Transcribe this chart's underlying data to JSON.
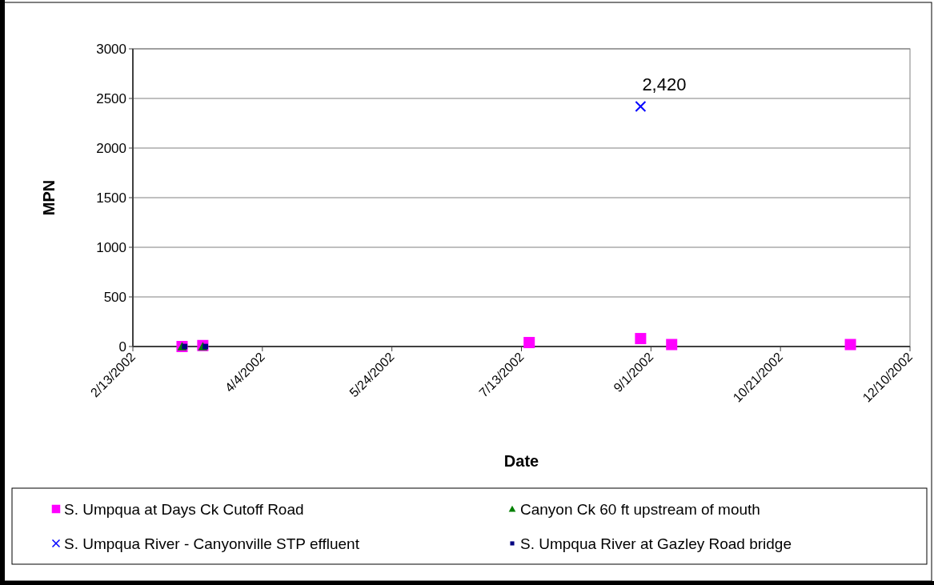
{
  "chart_data": {
    "type": "scatter",
    "xlabel": "Date",
    "ylabel": "MPN",
    "xlim": [
      "2002-02-13",
      "2002-12-10"
    ],
    "xticks": [
      {
        "value": "2002-02-13",
        "label": "2/13/2002"
      },
      {
        "value": "2002-04-04",
        "label": "4/4/2002"
      },
      {
        "value": "2002-05-24",
        "label": "5/24/2002"
      },
      {
        "value": "2002-07-13",
        "label": "7/13/2002"
      },
      {
        "value": "2002-09-01",
        "label": "9/1/2002"
      },
      {
        "value": "2002-10-21",
        "label": "10/21/2002"
      },
      {
        "value": "2002-12-10",
        "label": "12/10/2002"
      }
    ],
    "ylim": [
      0,
      3000
    ],
    "yticks": [
      0,
      500,
      1000,
      1500,
      2000,
      2500,
      3000
    ],
    "grid": "y",
    "legend": "bottom",
    "series": [
      {
        "name": "S. Umpqua at Days Ck Cutoff Road",
        "color": "#ff00ff",
        "marker": "square",
        "x": [
          "2002-03-04",
          "2002-03-12",
          "2002-07-16",
          "2002-08-28",
          "2002-09-09",
          "2002-11-17"
        ],
        "values": [
          0,
          10,
          40,
          80,
          20,
          20
        ]
      },
      {
        "name": "Canyon Ck 60 ft upstream of mouth",
        "color": "#008000",
        "marker": "triangle",
        "x": [
          "2002-03-04",
          "2002-03-12"
        ],
        "values": [
          0,
          0
        ]
      },
      {
        "name": "S. Umpqua River - Canyonville STP effluent",
        "color": "#0000ff",
        "marker": "cross",
        "x": [
          "2002-08-28"
        ],
        "values": [
          2420
        ]
      },
      {
        "name": "S. Umpqua River at Gazley Road bridge",
        "color": "#000080",
        "marker": "square",
        "x": [
          "2002-03-05",
          "2002-03-13"
        ],
        "values": [
          0,
          0
        ]
      }
    ],
    "annotations": [
      {
        "text": "2,420",
        "x": "2002-08-28",
        "y": 2420
      }
    ]
  }
}
